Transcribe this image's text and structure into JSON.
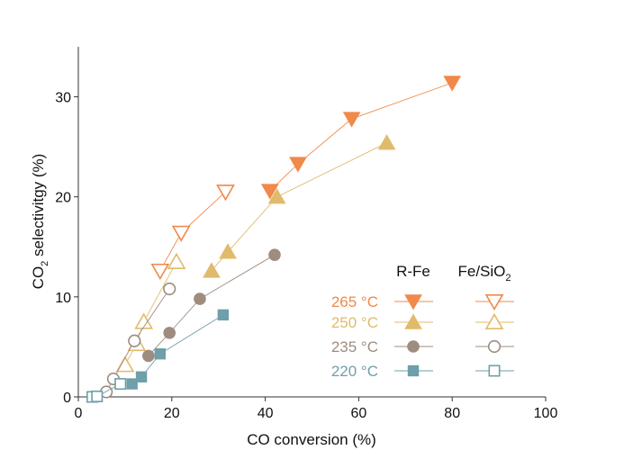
{
  "chart_data": {
    "type": "scatter",
    "title": "",
    "xlabel": "CO conversion (%)",
    "ylabel": {
      "main": "CO",
      "sub": "2",
      "rest": " selectivitgy (%)"
    },
    "xlim": [
      0,
      100
    ],
    "ylim": [
      0,
      35
    ],
    "xticks": [
      0,
      20,
      40,
      60,
      80,
      100
    ],
    "yticks": [
      0,
      10,
      20,
      30
    ],
    "grid": false,
    "legend": {
      "position": "right",
      "col_headers": {
        "rfe": "R-Fe",
        "fesio": {
          "main": "Fe/SiO",
          "sub": "2"
        }
      },
      "entries": [
        {
          "label": "265 °C",
          "color": "#f0894a",
          "marker": "triangle-down"
        },
        {
          "label": "250 °C",
          "color": "#e0bb6c",
          "marker": "triangle-up"
        },
        {
          "label": "235 °C",
          "color": "#9e8c7f",
          "marker": "circle"
        },
        {
          "label": "220 °C",
          "color": "#6f9fa8",
          "marker": "square"
        }
      ]
    },
    "series": [
      {
        "name": "R-Fe 265 °C",
        "temp_index": 0,
        "filled": true,
        "x": [
          41,
          47,
          58.5,
          80
        ],
        "y": [
          20.6,
          23.3,
          27.8,
          31.4
        ]
      },
      {
        "name": "Fe/SiO2 265 °C",
        "temp_index": 0,
        "filled": false,
        "x": [
          17.5,
          22,
          31.5
        ],
        "y": [
          12.6,
          16.4,
          20.5
        ]
      },
      {
        "name": "R-Fe 250 °C",
        "temp_index": 1,
        "filled": true,
        "x": [
          28.5,
          32,
          42.5,
          66
        ],
        "y": [
          12.6,
          14.5,
          20,
          25.4
        ]
      },
      {
        "name": "Fe/SiO2 250 °C",
        "temp_index": 1,
        "filled": false,
        "x": [
          10,
          12.5,
          14,
          21
        ],
        "y": [
          3.2,
          5.3,
          7.5,
          13.5
        ]
      },
      {
        "name": "R-Fe 235 °C",
        "temp_index": 2,
        "filled": true,
        "x": [
          15,
          19.5,
          26,
          42
        ],
        "y": [
          4.1,
          6.4,
          9.8,
          14.2
        ]
      },
      {
        "name": "Fe/SiO2 235 °C",
        "temp_index": 2,
        "filled": false,
        "x": [
          6,
          7.5,
          12,
          19.5
        ],
        "y": [
          0.5,
          1.8,
          5.6,
          10.8
        ]
      },
      {
        "name": "R-Fe 220 °C",
        "temp_index": 3,
        "filled": true,
        "x": [
          11.5,
          13.5,
          17.5,
          31
        ],
        "y": [
          1.3,
          2,
          4.3,
          8.2
        ]
      },
      {
        "name": "Fe/SiO2 220 °C",
        "temp_index": 3,
        "filled": false,
        "x": [
          3,
          4,
          9
        ],
        "y": [
          0,
          0.05,
          1.3
        ]
      }
    ]
  }
}
